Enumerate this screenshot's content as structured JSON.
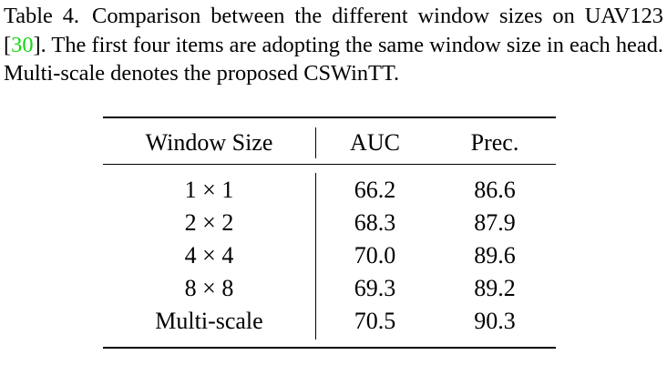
{
  "caption": {
    "lead": "Table 4.",
    "text_before_cite": "Comparison between the different window sizes on UAV123 [",
    "cite": "30",
    "text_after_cite": "]. The first four items are adopting the same window size in each head. Multi-scale denotes the proposed CSWinTT."
  },
  "table": {
    "headers": [
      "Window Size",
      "AUC",
      "Prec."
    ],
    "rows": [
      {
        "window": "1 × 1",
        "auc": "66.2",
        "prec": "86.6"
      },
      {
        "window": "2 × 2",
        "auc": "68.3",
        "prec": "87.9"
      },
      {
        "window": "4 × 4",
        "auc": "70.0",
        "prec": "89.6"
      },
      {
        "window": "8 × 8",
        "auc": "69.3",
        "prec": "89.2"
      },
      {
        "window": "Multi-scale",
        "auc": "70.5",
        "prec": "90.3"
      }
    ]
  },
  "colors": {
    "citation": "#14d614",
    "text": "#000000",
    "background": "#ffffff"
  }
}
